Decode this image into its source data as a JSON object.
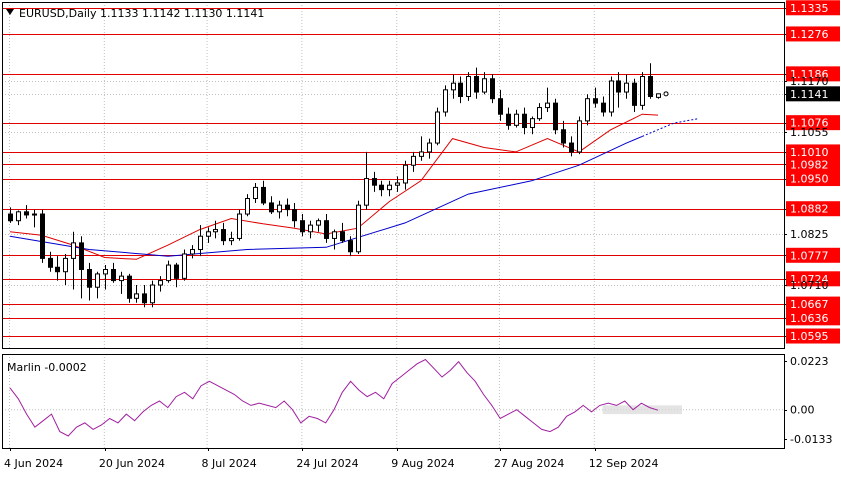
{
  "header": {
    "text": "EURUSD,Daily  1.1133 1.1142 1.1130 1.1141"
  },
  "indicator": {
    "label": "Marlin -0.0002"
  },
  "colors": {
    "background": "#ffffff",
    "grid": "#c0c0c0",
    "level_line": "#e00000",
    "level_label_bg": "#ff0000",
    "candle": "#000000",
    "ma_fast": "#dd0000",
    "ma_slow": "#0000cc",
    "oscillator": "#a020a0",
    "current_price_bg": "#000000"
  },
  "chart_data": [
    {
      "type": "candlestick",
      "title": "EURUSD,Daily",
      "ohlc_last": {
        "open": 1.1133,
        "high": 1.1142,
        "low": 1.113,
        "close": 1.1141
      },
      "ylim": [
        1.0568,
        1.1348
      ],
      "x_tick_labels": [
        "4 Jun 2024",
        "20 Jun 2024",
        "8 Jul 2024",
        "24 Jul 2024",
        "9 Aug 2024",
        "27 Aug 2024",
        "12 Sep 2024"
      ],
      "x_tick_index": [
        0,
        12,
        25,
        37,
        49,
        62,
        74
      ],
      "y_axis_labels": [
        {
          "value": 1.1335,
          "text": "1.1335",
          "level": true
        },
        {
          "value": 1.1276,
          "text": "1.1276",
          "level": true
        },
        {
          "value": 1.1186,
          "text": "1.1186",
          "level": true
        },
        {
          "value": 1.117,
          "text": "1.1170",
          "level": false
        },
        {
          "value": 1.1141,
          "text": "1.1141",
          "level": false,
          "current": true
        },
        {
          "value": 1.1076,
          "text": "1.1076",
          "level": true
        },
        {
          "value": 1.1055,
          "text": "1.1055",
          "level": false
        },
        {
          "value": 1.101,
          "text": "1.1010",
          "level": true
        },
        {
          "value": 1.0982,
          "text": "1.0982",
          "level": true
        },
        {
          "value": 1.095,
          "text": "1.0950",
          "level": true
        },
        {
          "value": 1.0882,
          "text": "1.0882",
          "level": true
        },
        {
          "value": 1.0825,
          "text": "1.0825",
          "level": false
        },
        {
          "value": 1.0777,
          "text": "1.0777",
          "level": true
        },
        {
          "value": 1.0724,
          "text": "1.0724",
          "level": true
        },
        {
          "value": 1.071,
          "text": "1.0710",
          "level": false
        },
        {
          "value": 1.0667,
          "text": "1.0667",
          "level": true
        },
        {
          "value": 1.0636,
          "text": "1.0636",
          "level": true
        },
        {
          "value": 1.0595,
          "text": "1.0595",
          "level": true
        }
      ],
      "candles": [
        [
          1.087,
          1.0885,
          1.085,
          1.0855
        ],
        [
          1.0855,
          1.0878,
          1.0845,
          1.0875
        ],
        [
          1.0875,
          1.089,
          1.086,
          1.0868
        ],
        [
          1.0868,
          1.088,
          1.084,
          1.087
        ],
        [
          1.087,
          1.088,
          1.076,
          1.077
        ],
        [
          1.077,
          1.0785,
          1.074,
          1.075
        ],
        [
          1.075,
          1.0775,
          1.072,
          1.074
        ],
        [
          1.074,
          1.078,
          1.071,
          1.077
        ],
        [
          1.077,
          1.083,
          1.07,
          1.0805
        ],
        [
          1.0805,
          1.082,
          1.068,
          1.0745
        ],
        [
          1.0745,
          1.076,
          1.0675,
          1.0705
        ],
        [
          1.0705,
          1.074,
          1.068,
          1.0735
        ],
        [
          1.0735,
          1.0755,
          1.07,
          1.0745
        ],
        [
          1.0745,
          1.076,
          1.0715,
          1.072
        ],
        [
          1.072,
          1.074,
          1.069,
          1.073
        ],
        [
          1.073,
          1.0735,
          1.067,
          1.068
        ],
        [
          1.068,
          1.071,
          1.067,
          1.069
        ],
        [
          1.069,
          1.071,
          1.066,
          1.067
        ],
        [
          1.067,
          1.072,
          1.066,
          1.071
        ],
        [
          1.071,
          1.073,
          1.0695,
          1.072
        ],
        [
          1.072,
          1.0765,
          1.0715,
          1.0755
        ],
        [
          1.0755,
          1.076,
          1.0705,
          1.0725
        ],
        [
          1.0725,
          1.079,
          1.072,
          1.078
        ],
        [
          1.078,
          1.08,
          1.077,
          1.079
        ],
        [
          1.079,
          1.0845,
          1.0775,
          1.082
        ],
        [
          1.082,
          1.084,
          1.0805,
          1.083
        ],
        [
          1.083,
          1.0855,
          1.0815,
          1.0835
        ],
        [
          1.0835,
          1.085,
          1.08,
          1.081
        ],
        [
          1.081,
          1.083,
          1.08,
          1.0815
        ],
        [
          1.0815,
          1.088,
          1.081,
          1.087
        ],
        [
          1.087,
          1.0915,
          1.0865,
          1.0905
        ],
        [
          1.0905,
          1.094,
          1.0895,
          1.093
        ],
        [
          1.093,
          1.0945,
          1.089,
          1.0895
        ],
        [
          1.0895,
          1.091,
          1.087,
          1.0875
        ],
        [
          1.0875,
          1.09,
          1.086,
          1.089
        ],
        [
          1.089,
          1.0905,
          1.0865,
          1.088
        ],
        [
          1.088,
          1.0895,
          1.084,
          1.0855
        ],
        [
          1.0855,
          1.087,
          1.082,
          1.083
        ],
        [
          1.083,
          1.0855,
          1.0815,
          1.0845
        ],
        [
          1.0845,
          1.086,
          1.083,
          1.0855
        ],
        [
          1.0855,
          1.087,
          1.0805,
          1.0815
        ],
        [
          1.0815,
          1.0835,
          1.079,
          1.083
        ],
        [
          1.083,
          1.085,
          1.0805,
          1.081
        ],
        [
          1.081,
          1.082,
          1.0775,
          1.0785
        ],
        [
          1.0785,
          1.09,
          1.078,
          1.089
        ],
        [
          1.089,
          1.101,
          1.088,
          1.095
        ],
        [
          1.095,
          1.0965,
          1.092,
          1.0935
        ],
        [
          1.0935,
          1.0945,
          1.091,
          1.0925
        ],
        [
          1.0925,
          1.0945,
          1.091,
          1.0935
        ],
        [
          1.0935,
          1.0955,
          1.092,
          1.094
        ],
        [
          1.094,
          1.099,
          1.0925,
          1.098
        ],
        [
          1.098,
          1.101,
          1.0965,
          1.1
        ],
        [
          1.1,
          1.1045,
          1.099,
          1.101
        ],
        [
          1.101,
          1.104,
          1.0995,
          1.103
        ],
        [
          1.103,
          1.111,
          1.1025,
          1.11
        ],
        [
          1.11,
          1.116,
          1.109,
          1.115
        ],
        [
          1.115,
          1.1185,
          1.113,
          1.1165
        ],
        [
          1.1165,
          1.118,
          1.112,
          1.1135
        ],
        [
          1.1135,
          1.119,
          1.1125,
          1.118
        ],
        [
          1.118,
          1.12,
          1.113,
          1.1145
        ],
        [
          1.1145,
          1.119,
          1.114,
          1.1175
        ],
        [
          1.1175,
          1.1185,
          1.112,
          1.113
        ],
        [
          1.113,
          1.115,
          1.108,
          1.1095
        ],
        [
          1.1095,
          1.111,
          1.106,
          1.107
        ],
        [
          1.107,
          1.1105,
          1.1065,
          1.1095
        ],
        [
          1.1095,
          1.111,
          1.105,
          1.1065
        ],
        [
          1.1065,
          1.109,
          1.105,
          1.1085
        ],
        [
          1.1085,
          1.112,
          1.108,
          1.111
        ],
        [
          1.111,
          1.1155,
          1.11,
          1.112
        ],
        [
          1.112,
          1.113,
          1.105,
          1.106
        ],
        [
          1.106,
          1.108,
          1.102,
          1.103
        ],
        [
          1.103,
          1.1045,
          1.1,
          1.101
        ],
        [
          1.101,
          1.109,
          1.1005,
          1.108
        ],
        [
          1.108,
          1.114,
          1.107,
          1.113
        ],
        [
          1.113,
          1.1155,
          1.111,
          1.112
        ],
        [
          1.112,
          1.1135,
          1.109,
          1.11
        ],
        [
          1.11,
          1.118,
          1.109,
          1.117
        ],
        [
          1.117,
          1.119,
          1.111,
          1.1145
        ],
        [
          1.1145,
          1.1185,
          1.113,
          1.1165
        ],
        [
          1.1165,
          1.1175,
          1.11,
          1.1115
        ],
        [
          1.1115,
          1.119,
          1.1105,
          1.118
        ],
        [
          1.118,
          1.121,
          1.113,
          1.1135
        ],
        [
          1.1133,
          1.1142,
          1.113,
          1.1141
        ]
      ],
      "ma_fast": [
        [
          0,
          1.083
        ],
        [
          4,
          1.0822
        ],
        [
          8,
          1.08
        ],
        [
          12,
          1.0772
        ],
        [
          16,
          1.0768
        ],
        [
          20,
          1.08
        ],
        [
          24,
          1.0835
        ],
        [
          28,
          1.086
        ],
        [
          32,
          1.0848
        ],
        [
          36,
          1.0838
        ],
        [
          40,
          1.0825
        ],
        [
          44,
          1.0838
        ],
        [
          48,
          1.0898
        ],
        [
          52,
          1.0945
        ],
        [
          56,
          1.104
        ],
        [
          60,
          1.102
        ],
        [
          64,
          1.101
        ],
        [
          68,
          1.104
        ],
        [
          72,
          1.101
        ],
        [
          76,
          1.106
        ],
        [
          80,
          1.1095
        ],
        [
          82,
          1.1093
        ]
      ],
      "ma_slow": [
        [
          0,
          1.082
        ],
        [
          10,
          1.079
        ],
        [
          20,
          1.0775
        ],
        [
          30,
          1.079
        ],
        [
          40,
          1.0795
        ],
        [
          50,
          1.085
        ],
        [
          58,
          1.0915
        ],
        [
          66,
          1.0945
        ],
        [
          72,
          1.098
        ],
        [
          78,
          1.103
        ],
        [
          80,
          1.1045
        ],
        [
          84,
          1.1075
        ]
      ],
      "ma_slow_projection_from": 81
    },
    {
      "type": "line",
      "title": "Marlin",
      "series": [
        {
          "name": "Marlin",
          "values": [
            0.01,
            0.005,
            -0.002,
            -0.008,
            -0.005,
            -0.002,
            -0.01,
            -0.012,
            -0.008,
            -0.006,
            -0.009,
            -0.007,
            -0.004,
            -0.006,
            -0.002,
            -0.005,
            -0.001,
            0.002,
            0.004,
            0.001,
            0.006,
            0.008,
            0.005,
            0.011,
            0.013,
            0.011,
            0.009,
            0.007,
            0.004,
            0.002,
            0.003,
            0.002,
            0.001,
            0.004,
            0.0,
            -0.006,
            -0.003,
            -0.004,
            -0.006,
            0.0,
            0.008,
            0.013,
            0.009,
            0.006,
            0.008,
            0.005,
            0.012,
            0.015,
            0.018,
            0.021,
            0.023,
            0.019,
            0.015,
            0.018,
            0.022,
            0.017,
            0.013,
            0.007,
            0.002,
            -0.004,
            -0.002,
            0.0,
            -0.003,
            -0.006,
            -0.009,
            -0.01,
            -0.008,
            -0.003,
            -0.001,
            0.002,
            -0.001,
            0.002,
            0.003,
            0.002,
            0.004,
            0.0,
            0.003,
            0.001,
            -0.0002
          ]
        }
      ],
      "ylim": [
        -0.0175,
        0.0255
      ],
      "y_tick_labels": [
        {
          "value": 0.0223,
          "text": "0.0223"
        },
        {
          "value": 0.0,
          "text": "0.00"
        },
        {
          "value": -0.0133,
          "text": "-0.0133"
        }
      ]
    }
  ]
}
